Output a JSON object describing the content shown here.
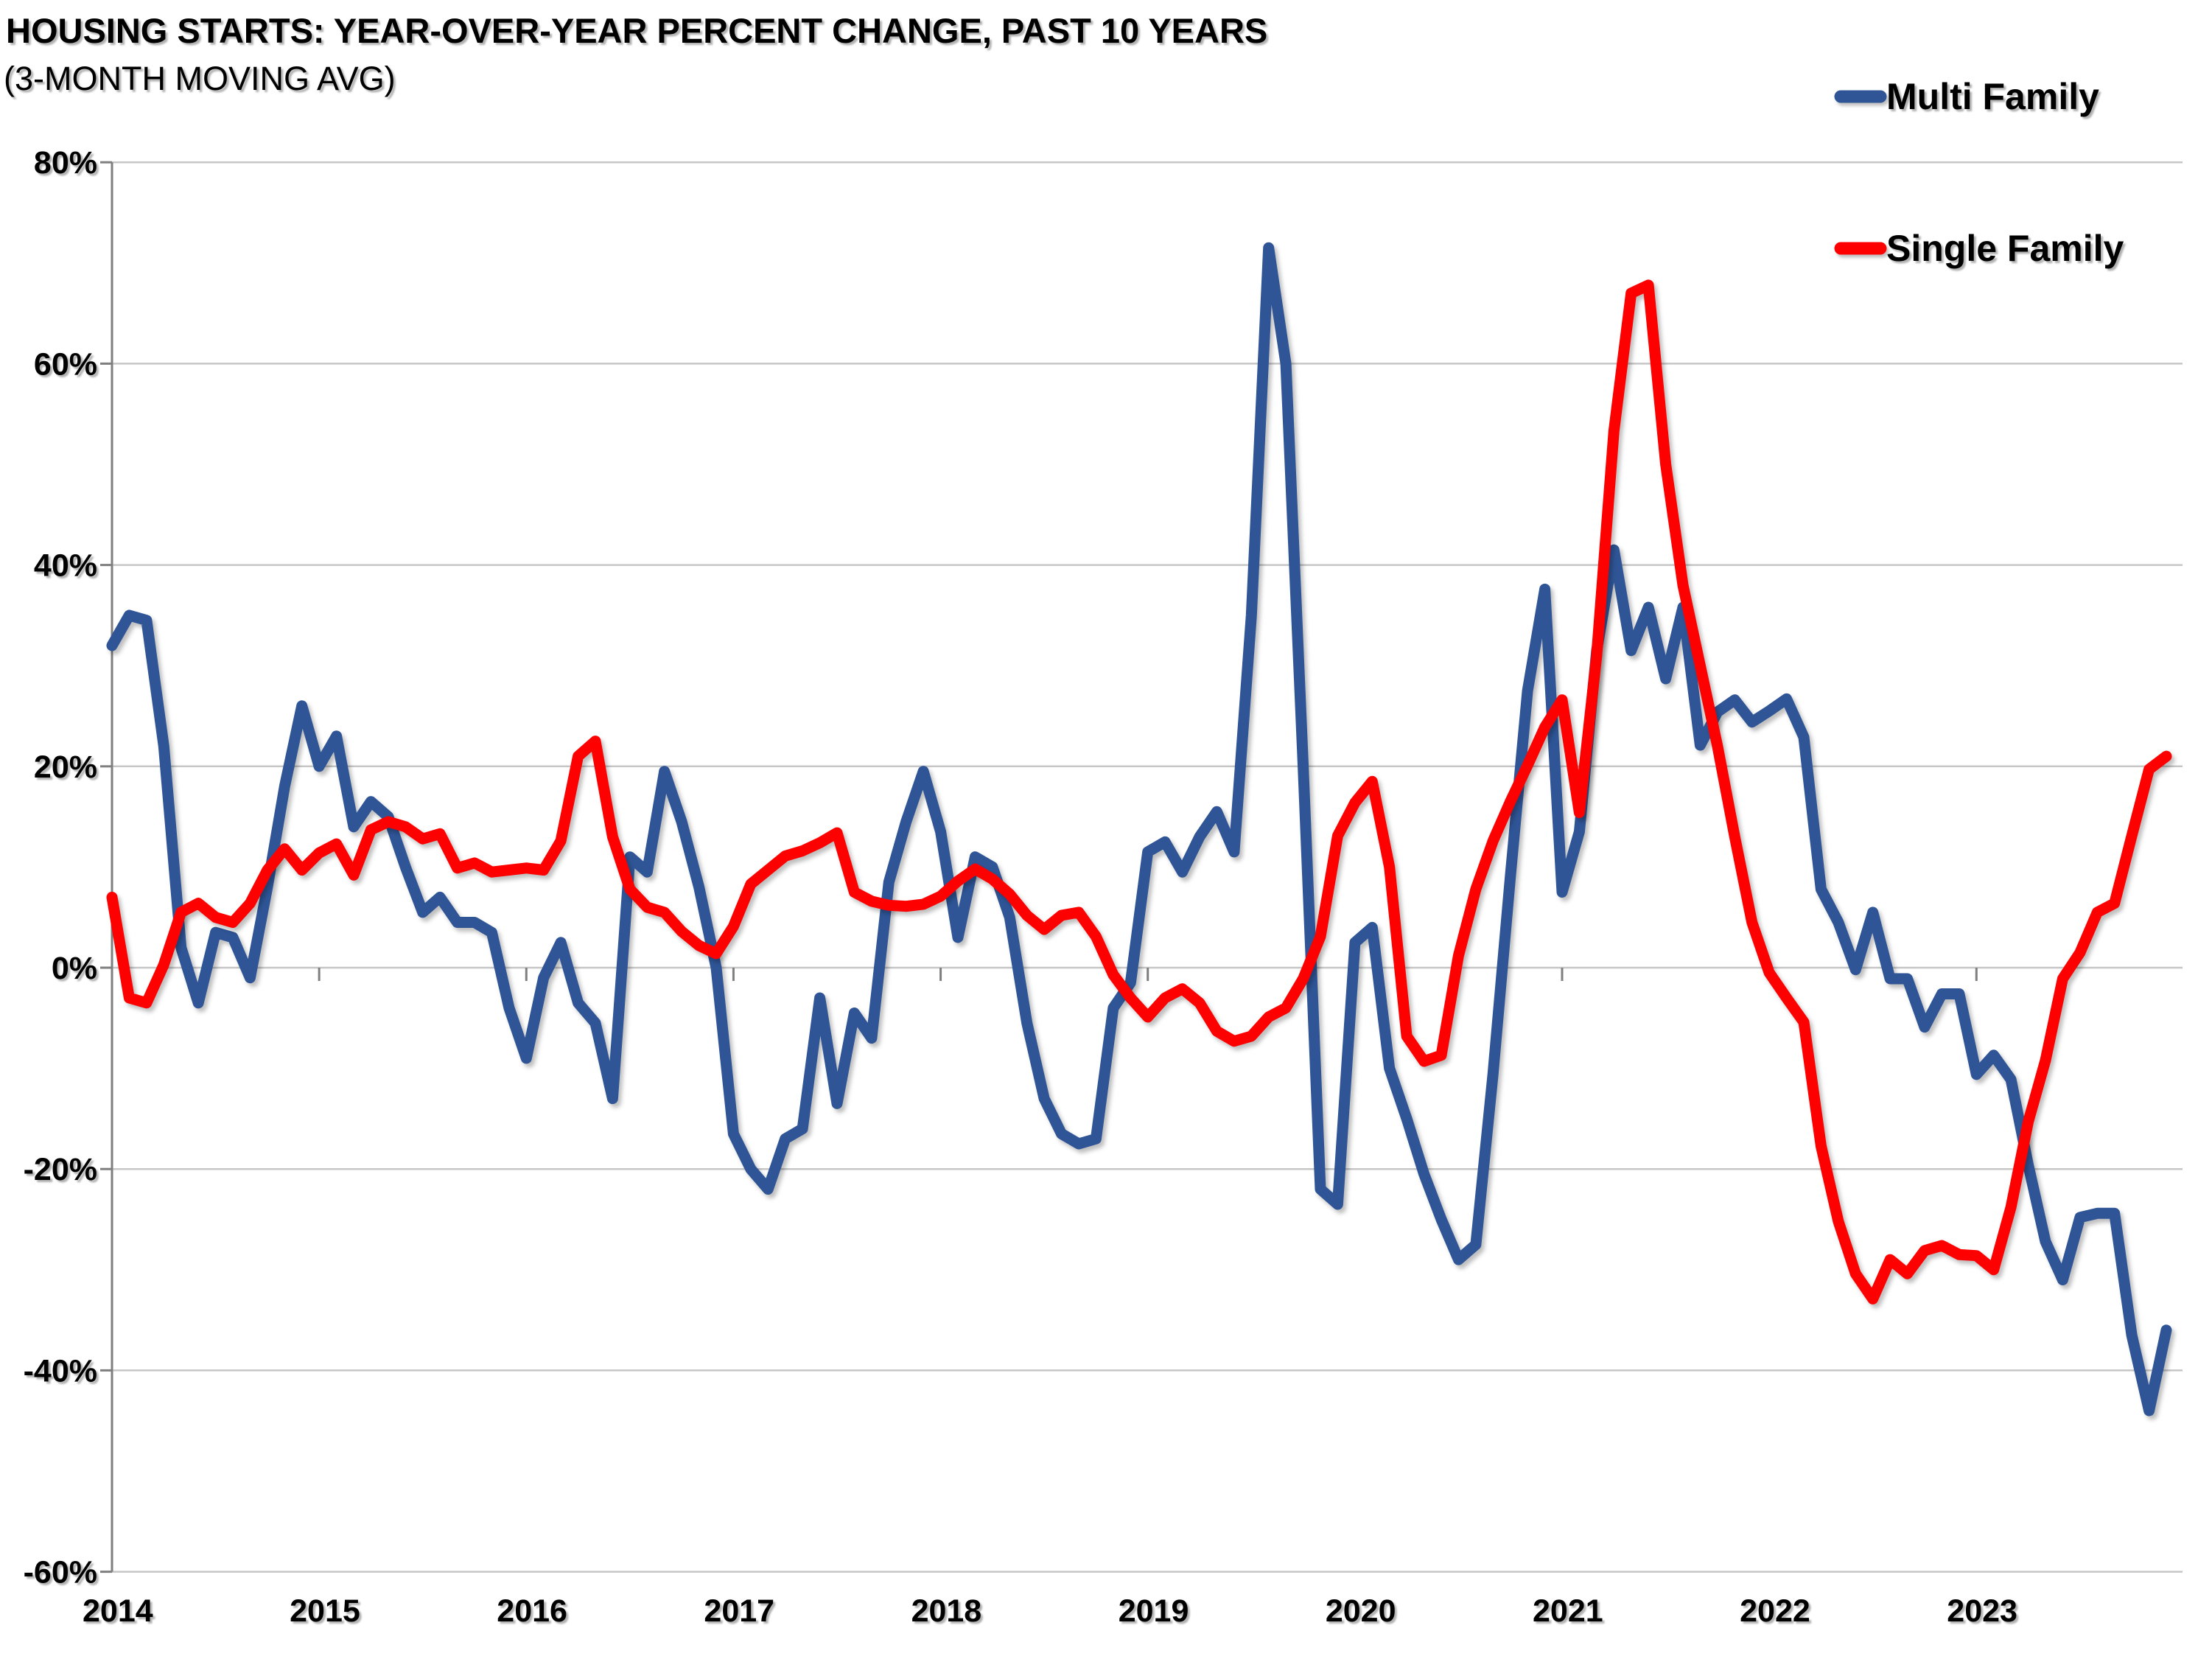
{
  "chart_data": {
    "type": "line",
    "title": "HOUSING STARTS: YEAR-OVER-YEAR PERCENT CHANGE, PAST 10 YEARS",
    "subtitle": "(3-MONTH MOVING AVG)",
    "grid": true,
    "legend_position": "top-right",
    "ylim": [
      -60,
      80
    ],
    "ytick_step": 20,
    "ytick_labels": [
      "80%",
      "60%",
      "40%",
      "20%",
      "0%",
      "-20%",
      "-40%",
      "-60%"
    ],
    "xtick_labels": [
      "2014",
      "2015",
      "2016",
      "2017",
      "2018",
      "2019",
      "2020",
      "2021",
      "2022",
      "2023"
    ],
    "x_start": "2014-01",
    "x_end": "2023-12",
    "colors": {
      "multi_family": "#2F5597",
      "single_family": "#FF0000",
      "grid": "#C6C6C6",
      "axis": "#7F7F7F",
      "text": "#000000"
    },
    "series": [
      {
        "name": "Multi Family",
        "color": "#2F5597",
        "values": [
          32,
          35,
          34.5,
          22,
          2,
          -3.5,
          3.5,
          3,
          -1,
          8,
          18,
          26,
          20,
          23,
          14,
          16.5,
          15,
          10,
          5.5,
          7,
          4.5,
          4.5,
          3.5,
          -4,
          -9,
          -1,
          2.5,
          -3.5,
          -5.5,
          -13,
          11,
          9.5,
          19.5,
          14.5,
          8,
          0,
          -16.5,
          -20,
          -22,
          -17,
          -16,
          -3,
          -13.5,
          -4.5,
          -7,
          8.5,
          14.5,
          19.5,
          13.5,
          3,
          11,
          10,
          5,
          -5.5,
          -13,
          -16.5,
          -17.5,
          -17,
          -4,
          -1.5,
          11.5,
          12.5,
          9.5,
          13,
          15.5,
          11.5,
          35,
          71.5,
          60,
          20,
          -22,
          -23.5,
          2.5,
          4,
          -10,
          -15,
          -20.5,
          -25,
          -29,
          -27.5,
          -10.5,
          9,
          27.5,
          37.6,
          7.5,
          13.5,
          31.5,
          41.5,
          31.5,
          35.8,
          28.7,
          35.8,
          22.1,
          25.4,
          26.6,
          24.4,
          25.5,
          26.7,
          22.9,
          7.8,
          4.5,
          -0.2,
          5.5,
          -1.1,
          -1.1,
          -5.9,
          -2.6,
          -2.6,
          -10.6,
          -8.7,
          -11.1,
          -19.6,
          -27.2,
          -31,
          -24.8,
          -24.4,
          -24.4,
          -36.5,
          -44,
          -36
        ]
      },
      {
        "name": "Single Family",
        "color": "#FF0000",
        "values": [
          7,
          -3,
          -3.5,
          0.3,
          5.5,
          6.4,
          5,
          4.5,
          6.4,
          9.7,
          11.8,
          9.7,
          11.4,
          12.3,
          9.2,
          13.7,
          14.5,
          14,
          12.8,
          13.3,
          9.9,
          10.4,
          9.5,
          9.7,
          9.9,
          9.7,
          12.6,
          21,
          22.5,
          13,
          7.8,
          6,
          5.5,
          3.6,
          2.2,
          1.4,
          4.1,
          8.3,
          9.7,
          11.1,
          11.6,
          12.4,
          13.4,
          7.5,
          6.6,
          6.2,
          6.1,
          6.3,
          7.1,
          8.6,
          9.8,
          8.8,
          7.3,
          5.2,
          3.8,
          5.2,
          5.5,
          3.1,
          -0.7,
          -3,
          -4.9,
          -3,
          -2.1,
          -3.5,
          -6.3,
          -7.3,
          -6.8,
          -4.9,
          -4,
          -1.1,
          3.1,
          13.1,
          16.4,
          18.5,
          10,
          -6.8,
          -9.3,
          -8.7,
          1.2,
          7.8,
          12.6,
          16.5,
          20.1,
          23.9,
          26.6,
          15.4,
          31,
          53.3,
          67,
          67.8,
          50,
          38,
          30,
          22,
          13,
          4.5,
          -0.5,
          -3,
          -5.4,
          -17.7,
          -25.2,
          -30.4,
          -32.9,
          -29,
          -30.4,
          -28.1,
          -27.6,
          -28.5,
          -28.6,
          -30,
          -23.8,
          -15.3,
          -9.2,
          -1.1,
          1.5,
          5.5,
          6.4,
          13.1,
          19.7,
          21
        ]
      }
    ]
  }
}
